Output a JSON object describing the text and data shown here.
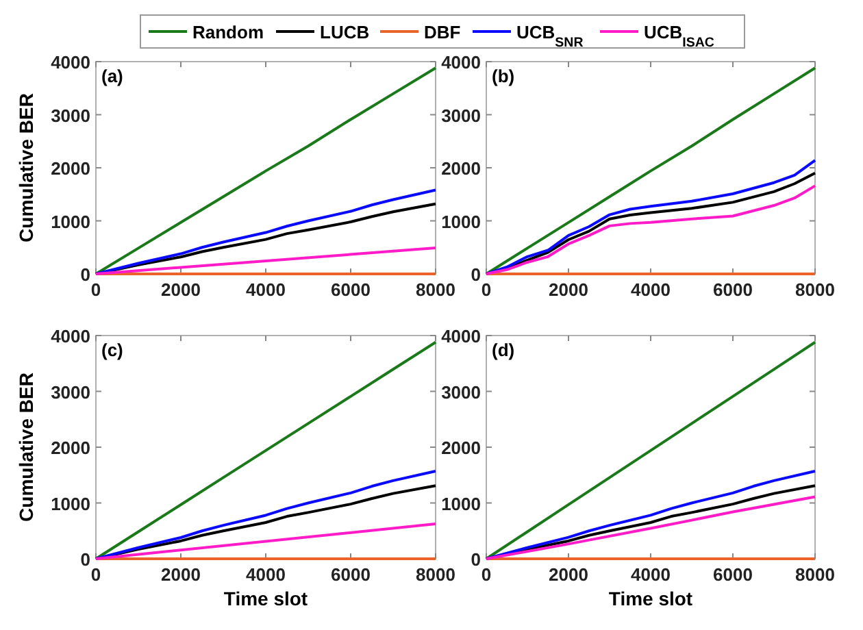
{
  "chart_data": [
    {
      "type": "line",
      "annotations": [
        "(a)"
      ],
      "ylabel": "Cumulative BER",
      "legend": "top",
      "xlim": [
        0,
        8000
      ],
      "xticks": [
        0,
        2000,
        4000,
        6000,
        8000
      ],
      "ylim": [
        0,
        4000
      ],
      "yticks": [
        0,
        1000,
        2000,
        3000,
        4000
      ],
      "grid": false,
      "line_style": "solid",
      "marker": "none",
      "series": [
        {
          "name": "Random",
          "color": "#1a7a1a",
          "x": [
            0,
            1000,
            2000,
            3000,
            4000,
            5000,
            6000,
            7000,
            8000
          ],
          "values": [
            0,
            485,
            970,
            1455,
            1940,
            2410,
            2910,
            3395,
            3880
          ]
        },
        {
          "name": "LUCB",
          "color": "#000000",
          "x": [
            0,
            1000,
            2000,
            2500,
            3000,
            4000,
            4500,
            5000,
            6000,
            6500,
            7000,
            8000
          ],
          "values": [
            0,
            170,
            320,
            420,
            500,
            650,
            760,
            830,
            980,
            1080,
            1170,
            1320
          ]
        },
        {
          "name": "DBF",
          "color": "#e8642a",
          "x": [
            0,
            8000
          ],
          "values": [
            0,
            0
          ]
        },
        {
          "name": "UCB$_{SNR}$",
          "color": "#0a0aff",
          "x": [
            0,
            1000,
            2000,
            2500,
            3000,
            4000,
            4500,
            5000,
            6000,
            6500,
            7000,
            8000
          ],
          "values": [
            0,
            200,
            380,
            500,
            600,
            780,
            900,
            1000,
            1180,
            1300,
            1400,
            1580
          ]
        },
        {
          "name": "UCB$_{ISAC}$",
          "color": "#ff1cc8",
          "x": [
            0,
            8000
          ],
          "values": [
            0,
            490
          ]
        }
      ]
    },
    {
      "type": "line",
      "annotations": [
        "(b)"
      ],
      "xlim": [
        0,
        8000
      ],
      "xticks": [
        0,
        2000,
        4000,
        6000,
        8000
      ],
      "ylim": [
        0,
        4000
      ],
      "yticks": [
        0,
        1000,
        2000,
        3000,
        4000
      ],
      "grid": false,
      "line_style": "solid",
      "marker": "none",
      "series": [
        {
          "color": "#1a7a1a",
          "x": [
            0,
            1000,
            2000,
            3000,
            4000,
            5000,
            6000,
            7000,
            8000
          ],
          "values": [
            0,
            485,
            970,
            1455,
            1940,
            2410,
            2910,
            3395,
            3880
          ]
        },
        {
          "color": "#000000",
          "x": [
            0,
            500,
            1000,
            1500,
            2000,
            2500,
            3000,
            3500,
            4000,
            5000,
            6000,
            7000,
            7500,
            8000
          ],
          "values": [
            0,
            100,
            260,
            405,
            645,
            805,
            1035,
            1110,
            1155,
            1235,
            1350,
            1550,
            1700,
            1900
          ]
        },
        {
          "color": "#e8642a",
          "x": [
            0,
            8000
          ],
          "values": [
            0,
            0
          ]
        },
        {
          "color": "#0a0aff",
          "x": [
            0,
            500,
            1000,
            1500,
            2000,
            2500,
            3000,
            3500,
            4000,
            5000,
            6000,
            7000,
            7500,
            8000
          ],
          "values": [
            0,
            130,
            325,
            445,
            725,
            890,
            1115,
            1220,
            1275,
            1370,
            1510,
            1720,
            1860,
            2140
          ]
        },
        {
          "color": "#ff1cc8",
          "x": [
            0,
            500,
            1000,
            1500,
            2000,
            2500,
            3000,
            3500,
            4000,
            5000,
            6000,
            7000,
            7500,
            8000
          ],
          "values": [
            0,
            80,
            220,
            325,
            565,
            725,
            905,
            950,
            970,
            1035,
            1090,
            1290,
            1430,
            1660
          ]
        }
      ]
    },
    {
      "type": "line",
      "annotations": [
        "(c)"
      ],
      "ylabel": "Cumulative BER",
      "xlabel": "Time slot",
      "xlim": [
        0,
        8000
      ],
      "xticks": [
        0,
        2000,
        4000,
        6000,
        8000
      ],
      "ylim": [
        0,
        4000
      ],
      "yticks": [
        0,
        1000,
        2000,
        3000,
        4000
      ],
      "grid": false,
      "line_style": "solid",
      "marker": "none",
      "series": [
        {
          "color": "#1a7a1a",
          "x": [
            0,
            1000,
            2000,
            3000,
            4000,
            5000,
            6000,
            7000,
            8000
          ],
          "values": [
            0,
            485,
            970,
            1455,
            1940,
            2425,
            2910,
            3395,
            3880
          ]
        },
        {
          "color": "#000000",
          "x": [
            0,
            1000,
            2000,
            2500,
            3000,
            4000,
            4500,
            5000,
            6000,
            6500,
            7000,
            8000
          ],
          "values": [
            0,
            170,
            320,
            420,
            500,
            650,
            760,
            830,
            980,
            1080,
            1170,
            1310
          ]
        },
        {
          "color": "#e8642a",
          "x": [
            0,
            8000
          ],
          "values": [
            0,
            0
          ]
        },
        {
          "color": "#0a0aff",
          "x": [
            0,
            1000,
            2000,
            2500,
            3000,
            4000,
            4500,
            5000,
            6000,
            6500,
            7000,
            8000
          ],
          "values": [
            0,
            200,
            380,
            500,
            600,
            780,
            900,
            1000,
            1180,
            1300,
            1400,
            1570
          ]
        },
        {
          "color": "#ff1cc8",
          "x": [
            0,
            8000
          ],
          "values": [
            0,
            625
          ]
        }
      ]
    },
    {
      "type": "line",
      "annotations": [
        "(d)"
      ],
      "xlabel": "Time slot",
      "xlim": [
        0,
        8000
      ],
      "xticks": [
        0,
        2000,
        4000,
        6000,
        8000
      ],
      "ylim": [
        0,
        4000
      ],
      "yticks": [
        0,
        1000,
        2000,
        3000,
        4000
      ],
      "grid": false,
      "line_style": "solid",
      "marker": "none",
      "series": [
        {
          "color": "#1a7a1a",
          "x": [
            0,
            1000,
            2000,
            3000,
            4000,
            5000,
            6000,
            7000,
            8000
          ],
          "values": [
            0,
            485,
            970,
            1455,
            1940,
            2425,
            2910,
            3395,
            3880
          ]
        },
        {
          "color": "#000000",
          "x": [
            0,
            1000,
            2000,
            2500,
            3000,
            4000,
            4500,
            5000,
            6000,
            6500,
            7000,
            8000
          ],
          "values": [
            0,
            170,
            320,
            420,
            500,
            650,
            760,
            830,
            980,
            1080,
            1170,
            1310
          ]
        },
        {
          "color": "#e8642a",
          "x": [
            0,
            8000
          ],
          "values": [
            0,
            0
          ]
        },
        {
          "color": "#0a0aff",
          "x": [
            0,
            1000,
            2000,
            2500,
            3000,
            4000,
            4500,
            5000,
            6000,
            6500,
            7000,
            8000
          ],
          "values": [
            0,
            200,
            385,
            500,
            600,
            780,
            900,
            1000,
            1180,
            1300,
            1400,
            1570
          ]
        },
        {
          "color": "#ff1cc8",
          "x": [
            0,
            2000,
            4000,
            6000,
            8000
          ],
          "values": [
            0,
            265,
            545,
            840,
            1110
          ]
        }
      ]
    }
  ]
}
